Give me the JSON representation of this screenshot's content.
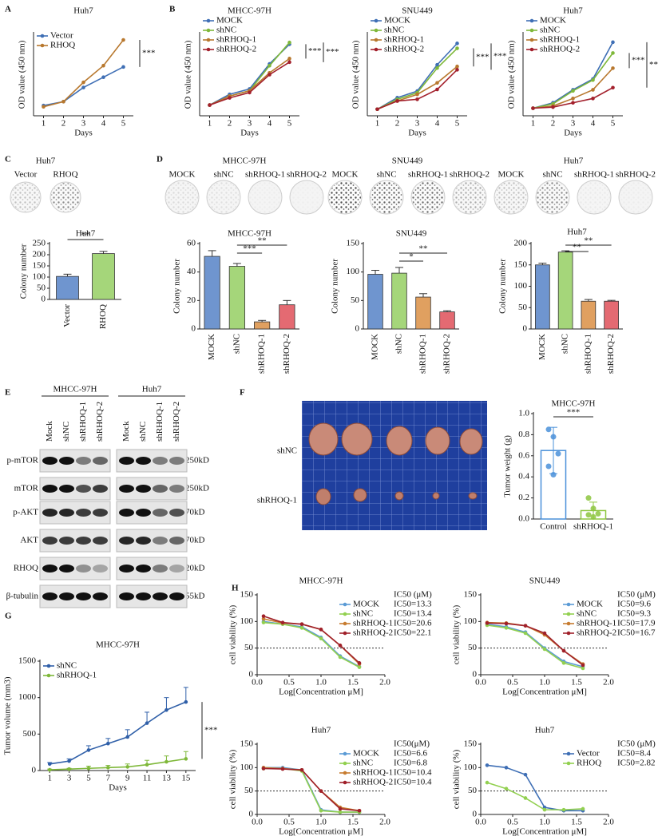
{
  "panel_labels": [
    "A",
    "B",
    "C",
    "D",
    "E",
    "F",
    "G",
    "H"
  ],
  "chart_data": [
    {
      "type": "line",
      "title": "Huh7",
      "x": [
        1,
        2,
        3,
        4,
        5
      ],
      "xlim": [
        0.5,
        5.5
      ],
      "xticks": [
        1,
        2,
        3,
        4,
        5
      ],
      "ylim": [
        0,
        3.2
      ],
      "xlabel": "Days",
      "ylabel": "OD value (450 nm)",
      "legend": "upper left",
      "annotations": [
        "***"
      ],
      "series": [
        {
          "name": "Vector",
          "color": "#3f6fb5",
          "values": [
            0.4,
            0.55,
            1.1,
            1.5,
            1.9
          ]
        },
        {
          "name": "RHOQ",
          "color": "#b8782e",
          "values": [
            0.35,
            0.55,
            1.3,
            1.95,
            2.95
          ]
        }
      ]
    },
    {
      "type": "line",
      "title": "MHCC-97H",
      "x": [
        1,
        2,
        3,
        4,
        5
      ],
      "xlim": [
        0.5,
        5.5
      ],
      "xticks": [
        1,
        2,
        3,
        4,
        5
      ],
      "ylim": [
        0,
        2.3
      ],
      "xlabel": "Days",
      "ylabel": "OD value (450 nm)",
      "legend": "upper left",
      "annotations": [
        "***",
        "***"
      ],
      "series": [
        {
          "name": "MOCK",
          "color": "#3f6fb5",
          "values": [
            0.3,
            0.6,
            0.75,
            1.45,
            2.0
          ]
        },
        {
          "name": "shNC",
          "color": "#7fb83a",
          "values": [
            0.3,
            0.55,
            0.7,
            1.4,
            2.05
          ]
        },
        {
          "name": "shRHOQ-1",
          "color": "#b8782e",
          "values": [
            0.3,
            0.55,
            0.7,
            1.2,
            1.6
          ]
        },
        {
          "name": "shRHOQ-2",
          "color": "#a3202c",
          "values": [
            0.3,
            0.5,
            0.65,
            1.15,
            1.5
          ]
        }
      ]
    },
    {
      "type": "line",
      "title": "SNU449",
      "x": [
        1,
        2,
        3,
        4,
        5
      ],
      "xlim": [
        0.5,
        5.5
      ],
      "xticks": [
        1,
        2,
        3,
        4,
        5
      ],
      "ylim": [
        0,
        2.5
      ],
      "xlabel": "Days",
      "ylabel": "OD value (450 nm)",
      "legend": "upper left",
      "annotations": [
        "***",
        "***"
      ],
      "series": [
        {
          "name": "MOCK",
          "color": "#3f6fb5",
          "values": [
            0.2,
            0.55,
            0.75,
            1.55,
            2.2
          ]
        },
        {
          "name": "shNC",
          "color": "#7fb83a",
          "values": [
            0.2,
            0.5,
            0.7,
            1.45,
            2.05
          ]
        },
        {
          "name": "shRHOQ-1",
          "color": "#b8782e",
          "values": [
            0.2,
            0.45,
            0.65,
            1.0,
            1.5
          ]
        },
        {
          "name": "shRHOQ-2",
          "color": "#a3202c",
          "values": [
            0.2,
            0.45,
            0.5,
            0.8,
            1.4
          ]
        }
      ]
    },
    {
      "type": "line",
      "title": "Huh7",
      "x": [
        1,
        2,
        3,
        4,
        5
      ],
      "xlim": [
        0.5,
        5.5
      ],
      "xticks": [
        1,
        2,
        3,
        4,
        5
      ],
      "ylim": [
        0,
        3.8
      ],
      "xlabel": "Days",
      "ylabel": "OD value (450 nm)",
      "legend": "upper left",
      "annotations": [
        "***",
        "***"
      ],
      "series": [
        {
          "name": "MOCK",
          "color": "#3f6fb5",
          "values": [
            0.35,
            0.6,
            1.2,
            1.7,
            3.4
          ]
        },
        {
          "name": "shNC",
          "color": "#7fb83a",
          "values": [
            0.35,
            0.55,
            1.15,
            1.65,
            2.9
          ]
        },
        {
          "name": "shRHOQ-1",
          "color": "#b8782e",
          "values": [
            0.35,
            0.45,
            0.8,
            1.2,
            2.2
          ]
        },
        {
          "name": "shRHOQ-2",
          "color": "#a3202c",
          "values": [
            0.35,
            0.4,
            0.6,
            0.8,
            1.3
          ]
        }
      ]
    },
    {
      "type": "bar",
      "title": "Huh7",
      "categories": [
        "Vector",
        "RHOQ"
      ],
      "values": [
        103,
        205
      ],
      "errors": [
        10,
        10
      ],
      "colors": [
        "#6f95cf",
        "#a5d67a"
      ],
      "filled": true,
      "ylim": [
        0,
        250
      ],
      "yticks": [
        0,
        50,
        100,
        150,
        200,
        250
      ],
      "ylabel": "Colony number",
      "annotations": [
        "**"
      ]
    },
    {
      "type": "bar",
      "title": "MHCC-97H",
      "categories": [
        "MOCK",
        "shNC",
        "shRHOQ-1",
        "shRHOQ-2"
      ],
      "values": [
        51,
        44,
        5,
        17
      ],
      "errors": [
        4,
        2,
        1,
        3
      ],
      "colors": [
        "#6f95cf",
        "#a5d67a",
        "#e0a060",
        "#e46a72"
      ],
      "filled": true,
      "ylim": [
        0,
        60
      ],
      "yticks": [
        0,
        20,
        40,
        60
      ],
      "ylabel": "Colony number",
      "annotations": [
        "***",
        "**"
      ]
    },
    {
      "type": "bar",
      "title": "SNU449",
      "categories": [
        "MOCK",
        "shNC",
        "shRHOQ-1",
        "shRHOQ-2"
      ],
      "values": [
        96,
        98,
        56,
        30
      ],
      "errors": [
        7,
        10,
        6,
        2
      ],
      "colors": [
        "#6f95cf",
        "#a5d67a",
        "#e0a060",
        "#e46a72"
      ],
      "filled": true,
      "ylim": [
        0,
        150
      ],
      "yticks": [
        0,
        50,
        100,
        150
      ],
      "ylabel": "Colony number",
      "annotations": [
        "*",
        "**"
      ]
    },
    {
      "type": "bar",
      "title": "Huh7",
      "categories": [
        "MOCK",
        "shNC",
        "shRHOQ-1",
        "shRHOQ-2"
      ],
      "values": [
        150,
        180,
        65,
        65
      ],
      "errors": [
        4,
        3,
        4,
        2
      ],
      "colors": [
        "#6f95cf",
        "#a5d67a",
        "#e0a060",
        "#e46a72"
      ],
      "filled": true,
      "ylim": [
        0,
        200
      ],
      "yticks": [
        0,
        50,
        100,
        150,
        200
      ],
      "ylabel": "Colony number",
      "annotations": [
        "**",
        "**"
      ]
    },
    {
      "type": "bar",
      "title": "MHCC-97H",
      "categories": [
        "Control",
        "shRHOQ-1"
      ],
      "values": [
        0.65,
        0.08
      ],
      "errors": [
        0.22,
        0.08
      ],
      "points": [
        [
          0.85,
          0.78,
          0.62,
          0.5,
          0.42
        ],
        [
          0.2,
          0.1,
          0.05,
          0.04,
          0.02
        ]
      ],
      "colors": [
        "#4a90d9",
        "#8dc63f"
      ],
      "filled": false,
      "ylim": [
        0,
        1.0
      ],
      "yticks": [
        {
          "value": 0,
          "label": "0.0"
        },
        0.2,
        0.4,
        0.6,
        0.8,
        {
          "value": 1,
          "label": "1.0"
        }
      ],
      "ylabel": "Tumor weight (g)",
      "annotations": [
        "***"
      ]
    },
    {
      "type": "line",
      "title": "MHCC-97H",
      "x": [
        1,
        3,
        5,
        7,
        9,
        11,
        13,
        15
      ],
      "xlim": [
        0,
        16
      ],
      "xticks": [
        1,
        3,
        5,
        7,
        9,
        11,
        13,
        15
      ],
      "ylim": [
        0,
        1500
      ],
      "yticks": [
        0,
        500,
        1000,
        1500
      ],
      "xlabel": "Days",
      "ylabel": "Tumor volume (mm3)",
      "legend": "upper left",
      "annotations": [
        "***"
      ],
      "series": [
        {
          "name": "shNC",
          "color": "#2f5fa8",
          "values": [
            90,
            130,
            280,
            370,
            460,
            650,
            830,
            940
          ],
          "errors": [
            20,
            30,
            60,
            70,
            100,
            150,
            170,
            200
          ]
        },
        {
          "name": "shRHOQ-1",
          "color": "#7fb83a",
          "values": [
            10,
            20,
            30,
            40,
            50,
            80,
            120,
            160
          ],
          "errors": [
            10,
            10,
            30,
            30,
            40,
            60,
            80,
            100
          ]
        }
      ]
    },
    {
      "type": "line",
      "title": "MHCC-97H",
      "x": [
        0.1,
        0.4,
        0.7,
        1.0,
        1.3,
        1.6
      ],
      "xlim": [
        0,
        2
      ],
      "xticks": [
        {
          "value": 0,
          "label": "0.0"
        },
        0.5,
        {
          "value": 1,
          "label": "1.0"
        },
        1.5,
        {
          "value": 2,
          "label": "2.0"
        }
      ],
      "ylim": [
        0,
        150
      ],
      "yticks": [
        0,
        50,
        100,
        150
      ],
      "hline": 50,
      "xlabel": "Log[Concentration μM]",
      "ylabel": "cell viability (%)",
      "legend": "upper right",
      "ic50_title": "IC50 (μM)",
      "series": [
        {
          "name": "MOCK",
          "color": "#5b9bd5",
          "ic50": "IC50=13.3",
          "values": [
            100,
            95,
            90,
            70,
            35,
            15
          ]
        },
        {
          "name": "shNC",
          "color": "#92d050",
          "ic50": "IC50=13.4",
          "values": [
            98,
            95,
            88,
            68,
            33,
            14
          ]
        },
        {
          "name": "shRHOQ-1",
          "color": "#c77c30",
          "ic50": "IC50=20.6",
          "values": [
            105,
            97,
            95,
            85,
            55,
            20
          ]
        },
        {
          "name": "shRHOQ-2",
          "color": "#a0202a",
          "ic50": "IC50=22.1",
          "values": [
            110,
            98,
            95,
            85,
            55,
            22
          ]
        }
      ]
    },
    {
      "type": "line",
      "title": "SNU449",
      "x": [
        0.1,
        0.4,
        0.7,
        1.0,
        1.3,
        1.6
      ],
      "xlim": [
        0,
        2
      ],
      "xticks": [
        {
          "value": 0,
          "label": "0.0"
        },
        0.5,
        {
          "value": 1,
          "label": "1.0"
        },
        1.5,
        {
          "value": 2,
          "label": "2.0"
        }
      ],
      "ylim": [
        0,
        150
      ],
      "yticks": [
        0,
        50,
        100,
        150
      ],
      "hline": 50,
      "xlabel": "Log[Concentration μM]",
      "ylabel": "cell viability (%)",
      "legend": "upper right",
      "ic50_title": "IC50 (μM)",
      "series": [
        {
          "name": "MOCK",
          "color": "#5b9bd5",
          "ic50": "IC50=9.6",
          "values": [
            95,
            90,
            80,
            50,
            25,
            15
          ]
        },
        {
          "name": "shNC",
          "color": "#92d050",
          "ic50": "IC50=9.3",
          "values": [
            93,
            88,
            78,
            48,
            22,
            12
          ]
        },
        {
          "name": "shRHOQ-1",
          "color": "#c77c30",
          "ic50": "IC50=17.9",
          "values": [
            98,
            97,
            92,
            75,
            45,
            20
          ]
        },
        {
          "name": "shRHOQ-2",
          "color": "#a0202a",
          "ic50": "IC50=16.7",
          "values": [
            97,
            96,
            92,
            78,
            45,
            18
          ]
        }
      ]
    },
    {
      "type": "line",
      "title": "Huh7",
      "x": [
        0.1,
        0.4,
        0.7,
        1.0,
        1.3,
        1.6
      ],
      "xlim": [
        0,
        2
      ],
      "xticks": [
        {
          "value": 0,
          "label": "0.0"
        },
        0.5,
        {
          "value": 1,
          "label": "1.0"
        },
        1.5,
        {
          "value": 2,
          "label": "2.0"
        }
      ],
      "ylim": [
        0,
        150
      ],
      "yticks": [
        0,
        50,
        100,
        150
      ],
      "hline": 50,
      "xlabel": "Log[Concentration μM]",
      "ylabel": "cell viability (%)",
      "legend": "upper right",
      "ic50_title": "IC50(μM)",
      "series": [
        {
          "name": "MOCK",
          "color": "#5b9bd5",
          "ic50": "IC50=6.6",
          "values": [
            100,
            100,
            95,
            10,
            5,
            5
          ]
        },
        {
          "name": "shNC",
          "color": "#92d050",
          "ic50": "IC50=6.8",
          "values": [
            98,
            98,
            93,
            8,
            5,
            5
          ]
        },
        {
          "name": "shRHOQ-1",
          "color": "#c77c30",
          "ic50": "IC50=10.4",
          "values": [
            100,
            98,
            95,
            50,
            15,
            8
          ]
        },
        {
          "name": "shRHOQ-2",
          "color": "#a0202a",
          "ic50": "IC50=10.4",
          "values": [
            98,
            97,
            95,
            50,
            12,
            8
          ]
        }
      ]
    },
    {
      "type": "line",
      "title": "Huh7",
      "x": [
        0.1,
        0.4,
        0.7,
        1.0,
        1.3,
        1.6
      ],
      "xlim": [
        0,
        2
      ],
      "xticks": [
        {
          "value": 0,
          "label": "0.0"
        },
        0.5,
        {
          "value": 1,
          "label": "1.0"
        },
        1.5,
        {
          "value": 2,
          "label": "2.0"
        }
      ],
      "ylim": [
        0,
        150
      ],
      "yticks": [
        0,
        50,
        100,
        150
      ],
      "hline": 50,
      "xlabel": "Log[Concentration μM]",
      "ylabel": "cell viability (%)",
      "legend": "upper right",
      "ic50_title": "IC50 (μM)",
      "series": [
        {
          "name": "Vector",
          "color": "#3f6fb5",
          "ic50": "IC50=8.4",
          "values": [
            105,
            100,
            85,
            15,
            8,
            8
          ]
        },
        {
          "name": "RHOQ",
          "color": "#92d050",
          "ic50": "IC50=2.82",
          "values": [
            68,
            55,
            35,
            10,
            10,
            12
          ]
        }
      ]
    }
  ],
  "colony_images": [
    {
      "title": "Huh7",
      "labels": [
        "Vector",
        "RHOQ"
      ]
    },
    {
      "title": "MHCC-97H",
      "labels": [
        "MOCK",
        "shNC",
        "shRHOQ-1",
        "shRHOQ-2"
      ]
    },
    {
      "title": "SNU449",
      "labels": [
        "MOCK",
        "shNC",
        "shRHOQ-1",
        "shRHOQ-2"
      ]
    },
    {
      "title": "Huh7",
      "labels": [
        "MOCK",
        "shNC",
        "shRHOQ-1",
        "shRHOQ-2"
      ]
    }
  ],
  "western_blot": {
    "groups": [
      "MHCC-97H",
      "Huh7"
    ],
    "lanes": [
      "Mock",
      "shNC",
      "shRHOQ-1",
      "shRHOQ-2"
    ],
    "rows": [
      "p-mTOR",
      "mTOR",
      "p-AKT",
      "AKT",
      "RHOQ",
      "β-tubulin"
    ],
    "sizes": [
      "250kD",
      "250kD",
      "70kD",
      "70kD",
      "20kD",
      "55kD"
    ]
  },
  "tumor_image": {
    "rows": [
      "shNC",
      "shRHOQ-1"
    ]
  }
}
